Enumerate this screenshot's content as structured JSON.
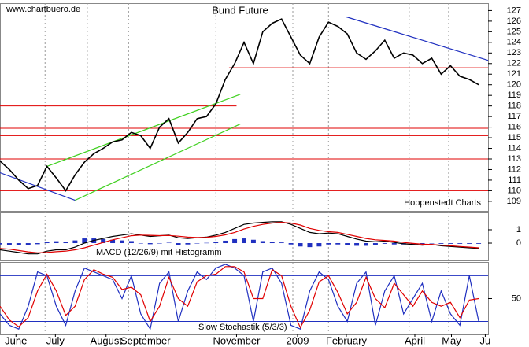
{
  "chart_data": [
    {
      "type": "line",
      "title": "Bund Future",
      "watermark": "www.chartbuero.de",
      "source": "Hoppenstedt Charts",
      "xlim": [
        0,
        52
      ],
      "ylim": [
        108.1,
        127.7
      ],
      "yticks": [
        109,
        110,
        111,
        112,
        113,
        114,
        115,
        116,
        117,
        118,
        119,
        120,
        121,
        122,
        123,
        124,
        125,
        126,
        127
      ],
      "series": [
        {
          "color": "#000000",
          "values": [
            112.8,
            112.0,
            111.0,
            110.2,
            110.5,
            112.3,
            111.2,
            110.0,
            111.5,
            112.7,
            113.5,
            114.0,
            114.6,
            114.8,
            115.5,
            115.2,
            114.0,
            116.0,
            116.8,
            114.5,
            115.5,
            116.8,
            117.0,
            118.2,
            120.5,
            122.0,
            124.0,
            122.0,
            125.0,
            125.8,
            126.2,
            124.5,
            122.8,
            122.0,
            124.5,
            125.9,
            125.5,
            124.8,
            123.0,
            122.4,
            123.2,
            124.2,
            122.5,
            123.0,
            122.8,
            122.0,
            122.5,
            121.0,
            121.8,
            120.8,
            120.5,
            120.0
          ]
        }
      ],
      "hline_color": "#e00000",
      "hlines": [
        {
          "y": 126.4,
          "x": [
            30.3,
            52
          ]
        },
        {
          "y": 121.6,
          "x": [
            24.4,
            52
          ]
        },
        {
          "y": 118.0,
          "x": [
            0,
            25.2
          ]
        },
        {
          "y": 115.9,
          "x": [
            0,
            52
          ]
        },
        {
          "y": 115.2,
          "x": [
            0,
            52
          ]
        },
        {
          "y": 113.0,
          "x": [
            0,
            52
          ]
        },
        {
          "y": 110.0,
          "x": [
            0,
            52
          ]
        }
      ],
      "trend_lines": [
        {
          "color": "#2030c0",
          "x": [
            0,
            8
          ],
          "values": [
            111.7,
            109.1
          ]
        },
        {
          "color": "#40d020",
          "x": [
            5,
            25.6
          ],
          "values": [
            112.3,
            119.1
          ]
        },
        {
          "color": "#40d020",
          "x": [
            8,
            25.6
          ],
          "values": [
            109.1,
            116.3
          ]
        },
        {
          "color": "#2030c0",
          "x": [
            36.9,
            52
          ],
          "values": [
            126.4,
            122.3
          ]
        }
      ]
    },
    {
      "type": "macd",
      "title": "MACD (12/26/9) mit Histogramm",
      "xlim": [
        0,
        52
      ],
      "ylim": [
        -1.29,
        2.29
      ],
      "yticks": [
        1,
        0
      ],
      "series": [
        {
          "color": "#000000",
          "values": [
            -0.5,
            -0.6,
            -0.7,
            -0.8,
            -0.8,
            -0.6,
            -0.5,
            -0.5,
            -0.3,
            0,
            0.2,
            0.35,
            0.5,
            0.6,
            0.7,
            0.6,
            0.5,
            0.55,
            0.6,
            0.4,
            0.35,
            0.4,
            0.45,
            0.6,
            0.8,
            1.1,
            1.4,
            1.5,
            1.55,
            1.6,
            1.6,
            1.4,
            1.1,
            0.8,
            0.7,
            0.75,
            0.7,
            0.5,
            0.3,
            0.15,
            0.1,
            0.15,
            0.05,
            -0.05,
            -0.1,
            -0.15,
            -0.1,
            -0.2,
            -0.25,
            -0.3,
            -0.35,
            -0.4
          ]
        },
        {
          "color": "#e00000",
          "values": [
            -0.4,
            -0.45,
            -0.55,
            -0.65,
            -0.72,
            -0.7,
            -0.64,
            -0.6,
            -0.5,
            -0.35,
            -0.15,
            0.05,
            0.25,
            0.4,
            0.55,
            0.6,
            0.58,
            0.56,
            0.57,
            0.52,
            0.45,
            0.42,
            0.43,
            0.5,
            0.62,
            0.8,
            1.05,
            1.25,
            1.4,
            1.5,
            1.55,
            1.5,
            1.35,
            1.1,
            0.95,
            0.85,
            0.8,
            0.65,
            0.5,
            0.35,
            0.25,
            0.2,
            0.15,
            0.05,
            -0.02,
            -0.08,
            -0.1,
            -0.15,
            -0.2,
            -0.25,
            -0.3,
            -0.35
          ]
        }
      ],
      "histogram": {
        "color": "#2030c0",
        "values": [
          -0.1,
          -0.15,
          -0.15,
          -0.15,
          -0.08,
          0.1,
          0.14,
          0.1,
          0.2,
          0.35,
          0.35,
          0.3,
          0.25,
          0.2,
          0.15,
          0,
          -0.08,
          -0.01,
          0.03,
          -0.12,
          -0.1,
          -0.02,
          0.02,
          0.1,
          0.18,
          0.3,
          0.35,
          0.25,
          0.15,
          0.1,
          0.05,
          -0.1,
          -0.25,
          -0.3,
          -0.25,
          -0.1,
          -0.1,
          -0.15,
          -0.2,
          -0.2,
          -0.15,
          -0.05,
          -0.1,
          -0.1,
          -0.08,
          -0.07,
          0,
          -0.05,
          -0.05,
          -0.05,
          -0.05,
          -0.05
        ]
      }
    },
    {
      "type": "stochastic",
      "title": "Slow Stochastik (5/3/3)",
      "xlim": [
        0,
        52
      ],
      "ylim": [
        3,
        98
      ],
      "yticks": [
        50
      ],
      "levels": [
        20,
        80
      ],
      "level_color": "#2030c0",
      "series": [
        {
          "color": "#2030c0",
          "values": [
            30,
            15,
            10,
            40,
            85,
            80,
            40,
            15,
            60,
            90,
            85,
            80,
            75,
            50,
            80,
            30,
            10,
            70,
            85,
            20,
            60,
            85,
            75,
            90,
            95,
            90,
            80,
            20,
            85,
            90,
            70,
            15,
            10,
            60,
            85,
            75,
            40,
            20,
            70,
            85,
            15,
            60,
            80,
            30,
            50,
            70,
            20,
            60,
            30,
            15,
            80,
            20
          ]
        },
        {
          "color": "#e00000",
          "values": [
            40,
            22,
            13,
            25,
            60,
            82,
            60,
            28,
            40,
            75,
            88,
            82,
            78,
            62,
            65,
            55,
            20,
            40,
            78,
            50,
            40,
            72,
            80,
            82,
            92,
            92,
            85,
            50,
            50,
            88,
            80,
            40,
            12,
            35,
            72,
            80,
            58,
            30,
            45,
            78,
            50,
            38,
            70,
            55,
            40,
            60,
            45,
            40,
            45,
            25,
            48,
            50
          ]
        }
      ],
      "xticks": [
        {
          "value": 1.7,
          "label": "June"
        },
        {
          "value": 5.9,
          "label": "July"
        },
        {
          "value": 11.3,
          "label": "August"
        },
        {
          "value": 15.5,
          "label": "September"
        },
        {
          "value": 25.2,
          "label": "November"
        },
        {
          "value": 31.7,
          "label": "2009"
        },
        {
          "value": 36.9,
          "label": "February"
        },
        {
          "value": 44.2,
          "label": "April"
        },
        {
          "value": 48.1,
          "label": "May"
        },
        {
          "value": 51.7,
          "label": "Ju"
        }
      ],
      "xgrid": [
        4.8,
        9.3,
        13.7,
        23,
        31.2,
        35,
        43.6,
        47.8
      ]
    }
  ]
}
